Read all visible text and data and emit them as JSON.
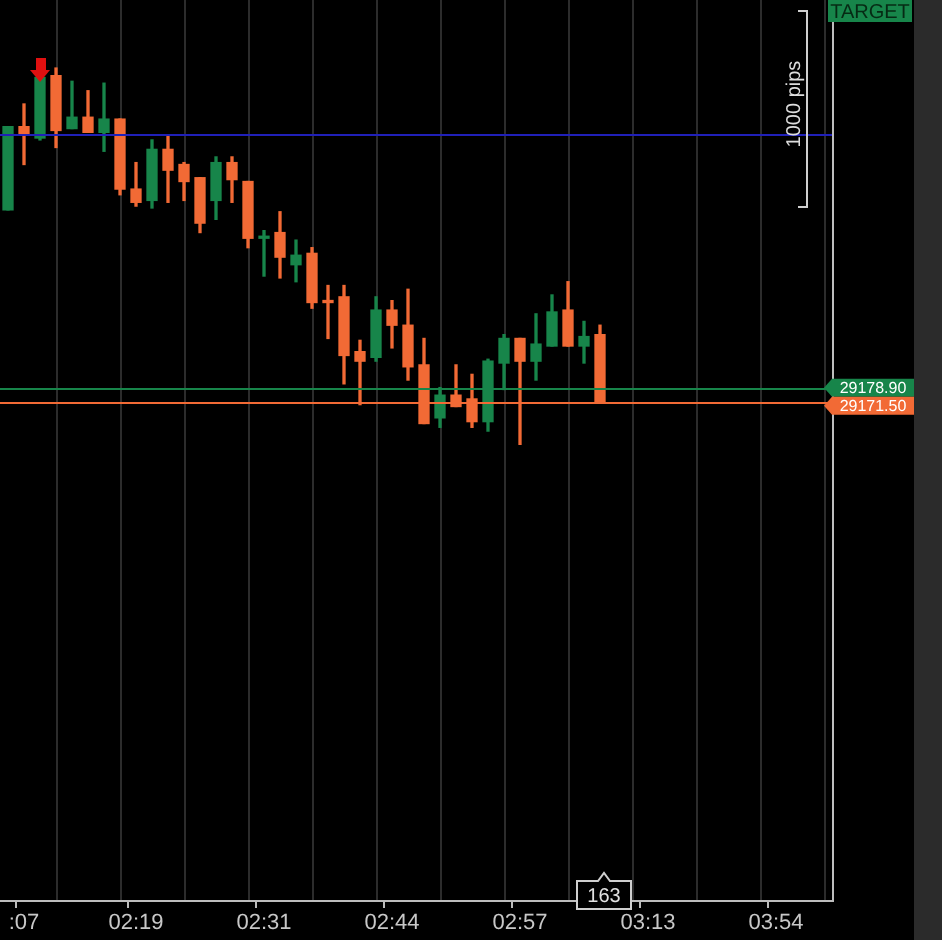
{
  "chart_data": {
    "type": "candlestick",
    "categories": [
      null,
      ":07",
      null,
      null,
      null,
      null,
      null,
      null,
      "02:19",
      null,
      null,
      null,
      null,
      null,
      null,
      null,
      "02:31",
      null,
      null,
      null,
      null,
      null,
      null,
      null,
      "02:44",
      null,
      null,
      null,
      null,
      null,
      null,
      null,
      "02:57",
      null,
      null,
      null,
      null,
      null,
      null,
      null,
      "03:13",
      null,
      null,
      null,
      null,
      null,
      null,
      null,
      "03:54",
      null,
      null,
      null
    ],
    "ohlc": [
      [
        29273,
        29317,
        29273,
        29317
      ],
      [
        29317,
        29329,
        29297,
        29313
      ],
      [
        29311,
        29344,
        29310,
        29343
      ],
      [
        29344,
        29348,
        29306,
        29315
      ],
      [
        29316,
        29341,
        29316,
        29322
      ],
      [
        29322,
        29336,
        29314,
        29314
      ],
      [
        29314,
        29340,
        29304,
        29321
      ],
      [
        29321,
        29321,
        29281,
        29284
      ],
      [
        29284,
        29298,
        29275,
        29277
      ],
      [
        29278,
        29310,
        29274,
        29305
      ],
      [
        29305,
        29312,
        29277,
        29294
      ],
      [
        29297,
        29298,
        29278,
        29288
      ],
      [
        29290,
        29290,
        29261,
        29266
      ],
      [
        29278,
        29301,
        29268,
        29298
      ],
      [
        29298,
        29301,
        29277,
        29289
      ],
      [
        29288,
        29288,
        29253,
        29258
      ],
      [
        29258,
        29262,
        29238,
        29259
      ],
      [
        29261,
        29272,
        29237,
        29248
      ],
      [
        29244,
        29257,
        29235,
        29249
      ],
      [
        29250,
        29253,
        29221,
        29224
      ],
      [
        29225,
        29233,
        29205,
        29224
      ],
      [
        29227,
        29233,
        29181,
        29196
      ],
      [
        29198,
        29204,
        29170,
        29193
      ],
      [
        29195,
        29227,
        29193,
        29220
      ],
      [
        29220,
        29225,
        29200,
        29212
      ],
      [
        29212,
        29231,
        29183,
        29190
      ],
      [
        29191,
        29205,
        29160,
        29160
      ],
      [
        29163,
        29179,
        29158,
        29175
      ],
      [
        29175,
        29191,
        29169,
        29169
      ],
      [
        29173,
        29186,
        29158,
        29161
      ],
      [
        29161,
        29194,
        29156,
        29193
      ],
      [
        29192,
        29207,
        29178,
        29205
      ],
      [
        29205,
        29205,
        29149,
        29193
      ],
      [
        29193,
        29218,
        29183,
        29202
      ],
      [
        29201,
        29228,
        29201,
        29219
      ],
      [
        29220,
        29235,
        29201,
        29201
      ],
      [
        29201,
        29214,
        29192,
        29206
      ],
      [
        29207,
        29212,
        29171.5,
        29171.5
      ],
      null,
      null,
      null,
      null,
      null,
      null,
      null,
      null,
      null,
      null,
      null,
      null,
      null,
      null
    ],
    "colors": [
      "#17854a",
      "#f26a35",
      "#17854a",
      "#f26a35",
      "#17854a",
      "#f26a35",
      "#17854a",
      "#f26a35",
      "#f26a35",
      "#17854a",
      "#f26a35",
      "#f26a35",
      "#f26a35",
      "#17854a",
      "#f26a35",
      "#f26a35",
      "#17854a",
      "#f26a35",
      "#17854a",
      "#f26a35",
      "#f26a35",
      "#f26a35",
      "#f26a35",
      "#17854a",
      "#f26a35",
      "#f26a35",
      "#f26a35",
      "#17854a",
      "#f26a35",
      "#f26a35",
      "#17854a",
      "#17854a",
      "#f26a35",
      "#17854a",
      "#17854a",
      "#f26a35",
      "#17854a",
      "#f26a35",
      null,
      null,
      null,
      null,
      null,
      null,
      null,
      null,
      null,
      null,
      null,
      null,
      null,
      null
    ],
    "ylim": [
      28908,
      29384
    ],
    "tick_labels": "x",
    "grid": "x",
    "legend": false,
    "ref_lines": [
      {
        "axis": "y",
        "value": 29313,
        "color": "#2020b8"
      },
      {
        "axis": "y",
        "value": 29178.9,
        "label": "29178.90",
        "color": "#17854a"
      },
      {
        "axis": "y",
        "value": 29171.5,
        "label": "29171.50",
        "color": "#f26a35"
      }
    ],
    "annotations": [
      "TARGET",
      "1000 pips",
      "163"
    ]
  }
}
